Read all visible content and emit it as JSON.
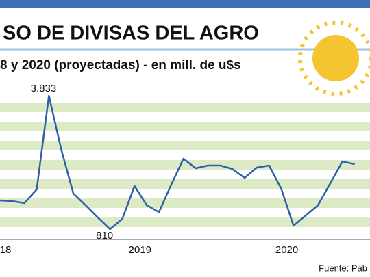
{
  "chart_data": {
    "type": "line",
    "title": "SO DE DIVISAS DEL AGRO",
    "subtitle": "8 y 2020 (proyectadas) - en mill. de u$s",
    "source": "Fuente: Pab",
    "categories": [
      "18",
      null,
      null,
      null,
      null,
      null,
      null,
      null,
      null,
      null,
      null,
      "2019",
      null,
      null,
      null,
      null,
      null,
      null,
      null,
      null,
      null,
      null,
      null,
      "2020",
      null,
      null,
      null,
      null,
      null,
      null
    ],
    "series": [
      {
        "color": "#2f5fa8",
        "values": [
          1461,
          1446,
          1400,
          1709,
          3833,
          2624,
          1616,
          1352,
          1073,
          810,
          1042,
          1787,
          1352,
          1197,
          1817,
          2406,
          2190,
          2252,
          2252,
          2174,
          1972,
          2205,
          2252,
          1724,
          888,
          1120,
          1352,
          1848,
          2344,
          2282
        ],
        "value_labels": [
          null,
          null,
          null,
          null,
          "3.833",
          null,
          null,
          null,
          null,
          "810",
          null,
          null,
          null,
          null,
          null,
          null,
          null,
          null,
          null,
          null,
          null,
          null,
          null,
          null,
          null,
          null,
          null,
          null,
          null,
          null
        ]
      }
    ],
    "ylim": [
      810,
      3833
    ]
  }
}
